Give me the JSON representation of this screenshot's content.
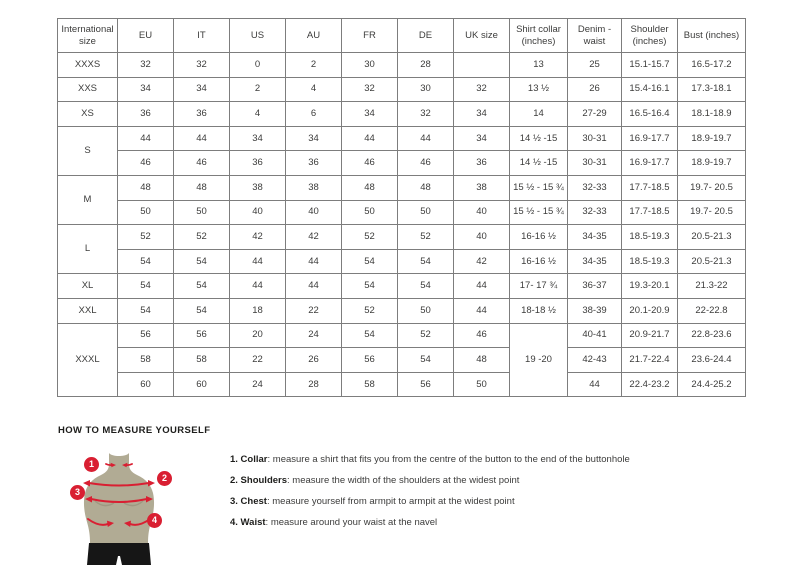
{
  "table": {
    "headers": [
      "International size",
      "EU",
      "IT",
      "US",
      "AU",
      "FR",
      "DE",
      "UK size",
      "Shirt collar (inches)",
      "Denim - waist",
      "Shoulder (inches)",
      "Bust (inches)"
    ],
    "rows": [
      [
        {
          "t": "XXXS"
        },
        "32",
        "32",
        "0",
        "2",
        "30",
        "28",
        "",
        "13",
        "25",
        "15.1-15.7",
        "16.5-17.2"
      ],
      [
        {
          "t": "XXS"
        },
        "34",
        "34",
        "2",
        "4",
        "32",
        "30",
        "32",
        "13 ½",
        "26",
        "15.4-16.1",
        "17.3-18.1"
      ],
      [
        {
          "t": "XS"
        },
        "36",
        "36",
        "4",
        "6",
        "34",
        "32",
        "34",
        "14",
        "27-29",
        "16.5-16.4",
        "18.1-18.9"
      ],
      [
        {
          "t": "S",
          "rs": 2
        },
        "44",
        "44",
        "34",
        "34",
        "44",
        "44",
        "34",
        "14 ½ -15",
        "30-31",
        "16.9-17.7",
        "18.9-19.7"
      ],
      [
        null,
        "46",
        "46",
        "36",
        "36",
        "46",
        "46",
        "36",
        "14 ½ -15",
        "30-31",
        "16.9-17.7",
        "18.9-19.7"
      ],
      [
        {
          "t": "M",
          "rs": 2
        },
        "48",
        "48",
        "38",
        "38",
        "48",
        "48",
        "38",
        "15 ½ - 15 ¾",
        "32-33",
        "17.7-18.5",
        "19.7- 20.5"
      ],
      [
        null,
        "50",
        "50",
        "40",
        "40",
        "50",
        "50",
        "40",
        "15 ½ - 15 ¾",
        "32-33",
        "17.7-18.5",
        "19.7- 20.5"
      ],
      [
        {
          "t": "L",
          "rs": 2
        },
        "52",
        "52",
        "42",
        "42",
        "52",
        "52",
        "40",
        "16-16 ½",
        "34-35",
        "18.5-19.3",
        "20.5-21.3"
      ],
      [
        null,
        "54",
        "54",
        "44",
        "44",
        "54",
        "54",
        "42",
        "16-16 ½",
        "34-35",
        "18.5-19.3",
        "20.5-21.3"
      ],
      [
        {
          "t": "XL"
        },
        "54",
        "54",
        "44",
        "44",
        "54",
        "54",
        "44",
        "17- 17 ¾",
        "36-37",
        "19.3-20.1",
        "21.3-22"
      ],
      [
        {
          "t": "XXL"
        },
        "54",
        "54",
        "18",
        "22",
        "52",
        "50",
        "44",
        "18-18 ½",
        "38-39",
        "20.1-20.9",
        "22-22.8"
      ],
      [
        {
          "t": "XXXL",
          "rs": 3
        },
        "56",
        "56",
        "20",
        "24",
        "54",
        "52",
        "46",
        {
          "t": "19 -20",
          "rs": 3
        },
        "40-41",
        "20.9-21.7",
        "22.8-23.6"
      ],
      [
        null,
        "58",
        "58",
        "22",
        "26",
        "56",
        "54",
        "48",
        null,
        "42-43",
        "21.7-22.4",
        "23.6-24.4"
      ],
      [
        null,
        "60",
        "60",
        "24",
        "28",
        "58",
        "56",
        "50",
        null,
        "44",
        "22.4-23.2",
        "24.4-25.2"
      ]
    ]
  },
  "measure": {
    "heading": "HOW TO MEASURE YOURSELF",
    "badges": [
      "1",
      "2",
      "3",
      "4"
    ],
    "steps": [
      {
        "lead": "1. Collar",
        "rest": ": measure a shirt that fits you from the centre of the button to the end of the buttonhole"
      },
      {
        "lead": "2. Shoulders",
        "rest": ": measure the width of the shoulders at the widest point"
      },
      {
        "lead": "3. Chest",
        "rest": ": measure yourself from armpit to armpit at the widest point"
      },
      {
        "lead": "4. Waist",
        "rest": ": measure around your waist at the navel"
      }
    ]
  },
  "colors": {
    "accent_red": "#d91f32",
    "torso_tan": "#b1ab94",
    "torso_shade": "#9e9881",
    "shorts_black": "#161616",
    "border_gray": "#7d7d7d",
    "text_dark": "#3c3c3b"
  }
}
